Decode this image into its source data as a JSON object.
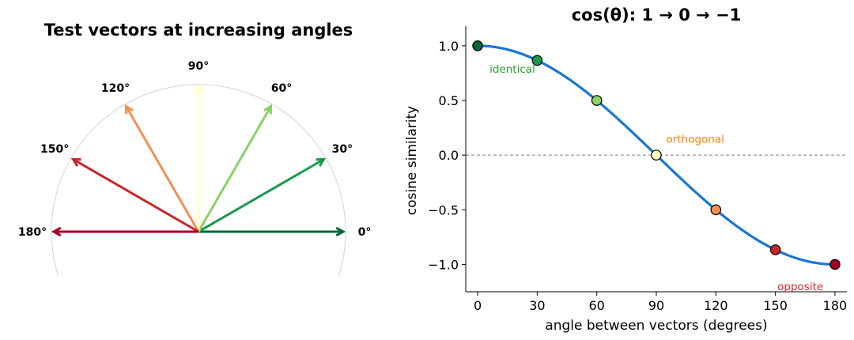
{
  "colors": {
    "curve": "#1976d2",
    "circle": "#d3d3d3",
    "zero_line": "#808080",
    "marker_edge": "#000000"
  },
  "left": {
    "title": "Test vectors at increasing angles",
    "vectors": [
      {
        "angle": 0,
        "label": "0°",
        "color": "#006837"
      },
      {
        "angle": 30,
        "label": "30°",
        "color": "#1a9850"
      },
      {
        "angle": 60,
        "label": "60°",
        "color": "#8bd068"
      },
      {
        "angle": 90,
        "label": "90°",
        "color": "#ffffbf"
      },
      {
        "angle": 120,
        "label": "120°",
        "color": "#f58f52"
      },
      {
        "angle": 150,
        "label": "150°",
        "color": "#c9242a"
      },
      {
        "angle": 180,
        "label": "180°",
        "color": "#a50026"
      }
    ]
  },
  "chart_data": {
    "type": "line",
    "title": "cos(θ):  1 → 0 → −1",
    "xlabel": "angle between vectors (degrees)",
    "ylabel": "cosine similarity",
    "xlim": [
      -6,
      186
    ],
    "ylim": [
      -1.25,
      1.18
    ],
    "xticks": [
      0,
      30,
      60,
      90,
      120,
      150,
      180
    ],
    "xtick_labels": [
      "0",
      "30",
      "60",
      "90",
      "120",
      "150",
      "180"
    ],
    "yticks": [
      1.0,
      0.5,
      0.0,
      -0.5,
      -1.0
    ],
    "ytick_labels": [
      "1.0",
      "0.5",
      "0.0",
      "−0.5",
      "−1.0"
    ],
    "grid": false,
    "series": [
      {
        "x": [
          0,
          30,
          60,
          90,
          120,
          150,
          180
        ],
        "y": [
          1.0,
          0.866,
          0.5,
          0.0,
          -0.5,
          -0.866,
          -1.0
        ]
      }
    ],
    "annotations": [
      {
        "text": "identical",
        "x": 6,
        "y": 0.79,
        "color": "#2ca02c"
      },
      {
        "text": "orthogonal",
        "x": 95,
        "y": 0.15,
        "color": "#ff7f0e"
      },
      {
        "text": "opposite",
        "x": 151,
        "y": -1.2,
        "color": "#d62728"
      }
    ]
  }
}
